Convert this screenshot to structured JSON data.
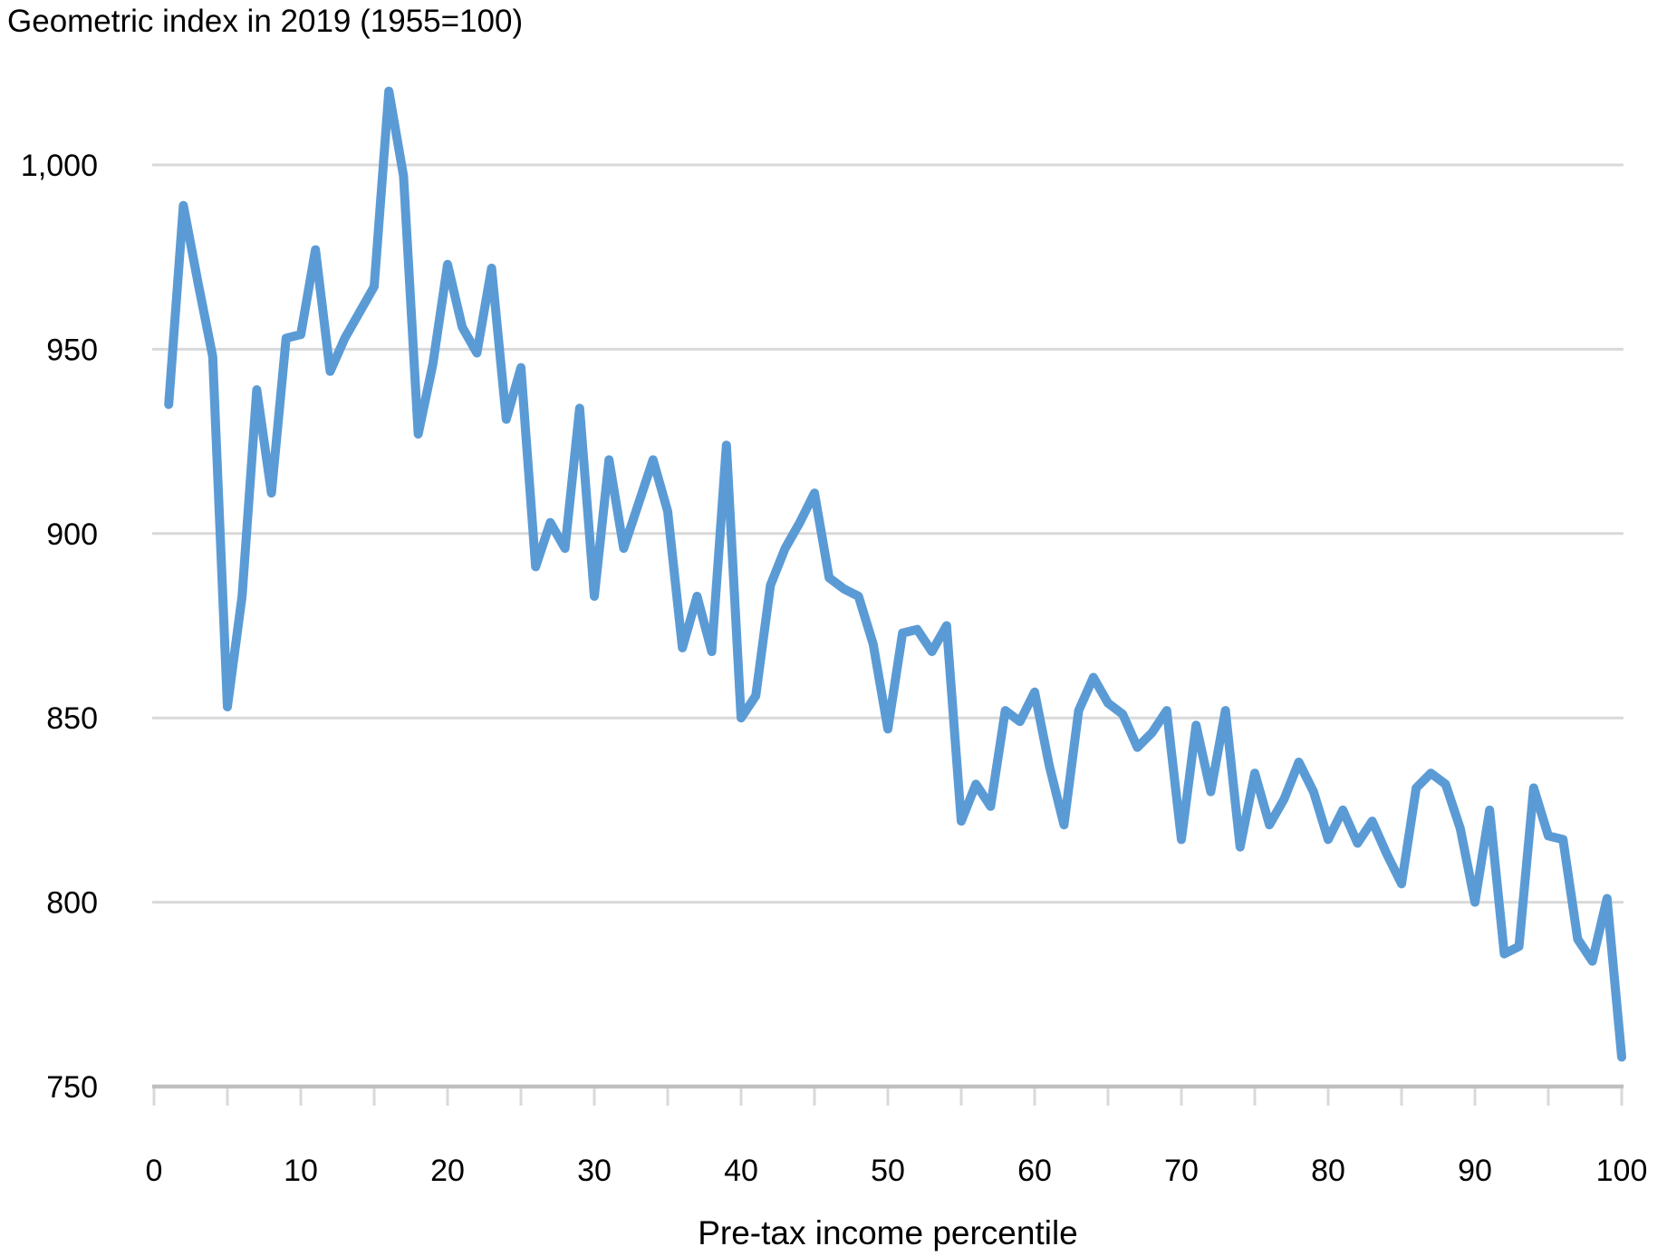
{
  "page": {
    "title": "Geometric index in 2019 (1955=100)"
  },
  "chart_data": {
    "type": "line",
    "title": "Geometric index in 2019 (1955=100)",
    "xlabel": "Pre-tax income percentile",
    "ylabel": "Geometric index in 2019 (1955=100)",
    "series_name": "Geometric index",
    "x_min": 1,
    "x_max": 100,
    "x_unit": "pre-tax income percentile",
    "values": [
      935,
      989,
      968,
      948,
      853,
      883,
      939,
      911,
      953,
      954,
      977,
      944,
      953,
      960,
      967,
      1020,
      997,
      927,
      946,
      973,
      956,
      949,
      972,
      931,
      945,
      891,
      903,
      896,
      934,
      883,
      920,
      896,
      908,
      920,
      906,
      869,
      883,
      868,
      924,
      850,
      856,
      886,
      896,
      903,
      911,
      888,
      885,
      883,
      870,
      847,
      873,
      874,
      868,
      875,
      822,
      832,
      826,
      852,
      849,
      857,
      837,
      821,
      852,
      861,
      854,
      851,
      842,
      846,
      852,
      817,
      848,
      830,
      852,
      815,
      835,
      821,
      828,
      838,
      830,
      817,
      825,
      816,
      822,
      813,
      805,
      831,
      835,
      832,
      820,
      800,
      825,
      786,
      788,
      831,
      818,
      817,
      790,
      784,
      801,
      758
    ],
    "xlim": [
      0,
      100
    ],
    "ylim": [
      750,
      1000
    ],
    "x_tick_labels": [
      "0",
      "10",
      "20",
      "30",
      "40",
      "50",
      "60",
      "70",
      "80",
      "90",
      "100"
    ],
    "x_tick_values": [
      0,
      10,
      20,
      30,
      40,
      50,
      60,
      70,
      80,
      90,
      100
    ],
    "x_minor_tick_step": 5,
    "y_tick_labels": [
      "750",
      "800",
      "850",
      "900",
      "950",
      "1,000"
    ],
    "y_tick_values": [
      750,
      800,
      850,
      900,
      950,
      1000
    ],
    "grid": "horizontal-only",
    "legend": "none",
    "colors": {
      "line": "#5b9bd5",
      "gridline": "#d9d9d9",
      "axis_line": "#bfbfbf",
      "text": "#000000"
    }
  }
}
